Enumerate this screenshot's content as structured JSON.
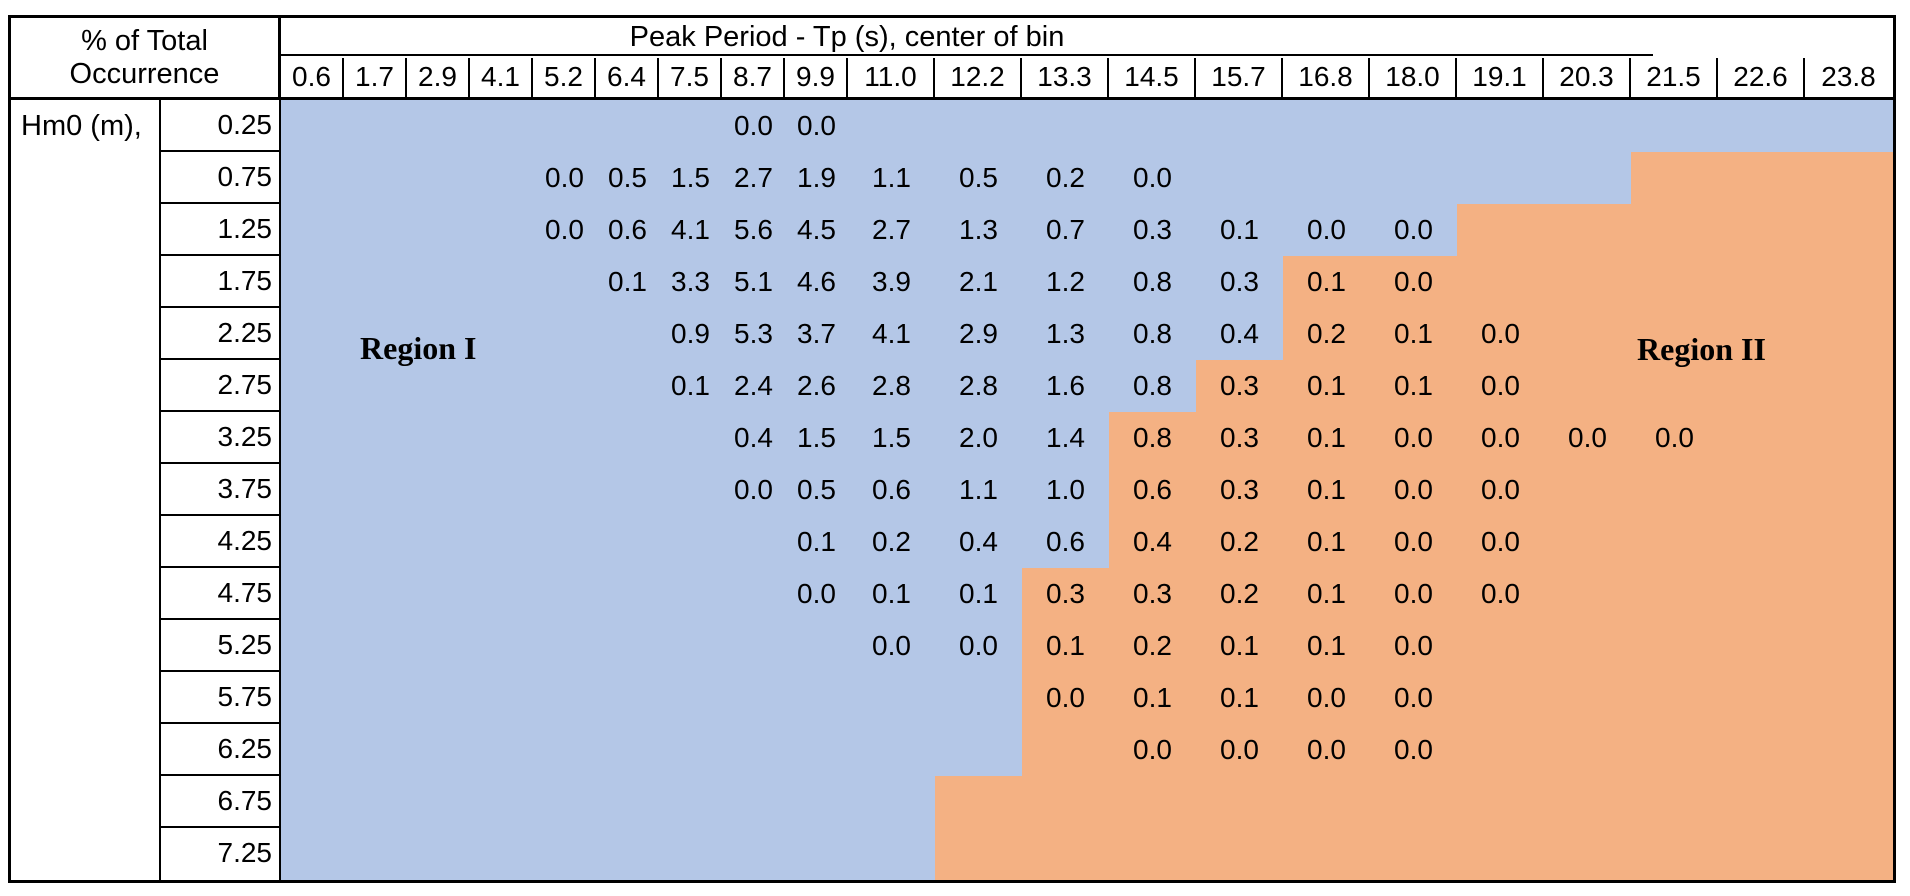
{
  "header": {
    "corner_line1": "% of Total",
    "corner_line2": "Occurrence",
    "col_axis_title": "Peak Period - Tp (s), center of bin",
    "row_axis_label": "Hm0 (m),"
  },
  "regions": {
    "region1": {
      "label": "Region I",
      "color": "#B4C7E7"
    },
    "region2": {
      "label": "Region II",
      "color": "#F4B183"
    }
  },
  "chart_data": {
    "type": "heatmap",
    "title": "% of Total Occurrence",
    "xlabel": "Peak Period - Tp (s), center of bin",
    "ylabel": "Hm0 (m)",
    "legend": "values are percent of total occurrence; Region I = blue shading, Region II = orange shading",
    "columns": [
      "0.6",
      "1.7",
      "2.9",
      "4.1",
      "5.2",
      "6.4",
      "7.5",
      "8.7",
      "9.9",
      "11.0",
      "12.2",
      "13.3",
      "14.5",
      "15.7",
      "16.8",
      "18.0",
      "19.1",
      "20.3",
      "21.5",
      "22.6",
      "23.8"
    ],
    "rows": [
      {
        "hm0": "0.25",
        "values": {
          "8.7": "0.0",
          "9.9": "0.0"
        },
        "region2_from": null
      },
      {
        "hm0": "0.75",
        "values": {
          "5.2": "0.0",
          "6.4": "0.5",
          "7.5": "1.5",
          "8.7": "2.7",
          "9.9": "1.9",
          "11.0": "1.1",
          "12.2": "0.5",
          "13.3": "0.2",
          "14.5": "0.0"
        },
        "region2_from": "21.5"
      },
      {
        "hm0": "1.25",
        "values": {
          "5.2": "0.0",
          "6.4": "0.6",
          "7.5": "4.1",
          "8.7": "5.6",
          "9.9": "4.5",
          "11.0": "2.7",
          "12.2": "1.3",
          "13.3": "0.7",
          "14.5": "0.3",
          "15.7": "0.1",
          "16.8": "0.0",
          "18.0": "0.0"
        },
        "region2_from": "19.1"
      },
      {
        "hm0": "1.75",
        "values": {
          "6.4": "0.1",
          "7.5": "3.3",
          "8.7": "5.1",
          "9.9": "4.6",
          "11.0": "3.9",
          "12.2": "2.1",
          "13.3": "1.2",
          "14.5": "0.8",
          "15.7": "0.3",
          "16.8": "0.1",
          "18.0": "0.0"
        },
        "region2_from": "16.8"
      },
      {
        "hm0": "2.25",
        "values": {
          "7.5": "0.9",
          "8.7": "5.3",
          "9.9": "3.7",
          "11.0": "4.1",
          "12.2": "2.9",
          "13.3": "1.3",
          "14.5": "0.8",
          "15.7": "0.4",
          "16.8": "0.2",
          "18.0": "0.1",
          "19.1": "0.0"
        },
        "region2_from": "16.8"
      },
      {
        "hm0": "2.75",
        "values": {
          "7.5": "0.1",
          "8.7": "2.4",
          "9.9": "2.6",
          "11.0": "2.8",
          "12.2": "2.8",
          "13.3": "1.6",
          "14.5": "0.8",
          "15.7": "0.3",
          "16.8": "0.1",
          "18.0": "0.1",
          "19.1": "0.0"
        },
        "region2_from": "15.7"
      },
      {
        "hm0": "3.25",
        "values": {
          "8.7": "0.4",
          "9.9": "1.5",
          "11.0": "1.5",
          "12.2": "2.0",
          "13.3": "1.4",
          "14.5": "0.8",
          "15.7": "0.3",
          "16.8": "0.1",
          "18.0": "0.0",
          "19.1": "0.0",
          "20.3": "0.0",
          "21.5": "0.0"
        },
        "region2_from": "14.5"
      },
      {
        "hm0": "3.75",
        "values": {
          "8.7": "0.0",
          "9.9": "0.5",
          "11.0": "0.6",
          "12.2": "1.1",
          "13.3": "1.0",
          "14.5": "0.6",
          "15.7": "0.3",
          "16.8": "0.1",
          "18.0": "0.0",
          "19.1": "0.0"
        },
        "region2_from": "14.5"
      },
      {
        "hm0": "4.25",
        "values": {
          "9.9": "0.1",
          "11.0": "0.2",
          "12.2": "0.4",
          "13.3": "0.6",
          "14.5": "0.4",
          "15.7": "0.2",
          "16.8": "0.1",
          "18.0": "0.0",
          "19.1": "0.0"
        },
        "region2_from": "14.5"
      },
      {
        "hm0": "4.75",
        "values": {
          "9.9": "0.0",
          "11.0": "0.1",
          "12.2": "0.1",
          "13.3": "0.3",
          "14.5": "0.3",
          "15.7": "0.2",
          "16.8": "0.1",
          "18.0": "0.0",
          "19.1": "0.0"
        },
        "region2_from": "13.3"
      },
      {
        "hm0": "5.25",
        "values": {
          "11.0": "0.0",
          "12.2": "0.0",
          "13.3": "0.1",
          "14.5": "0.2",
          "15.7": "0.1",
          "16.8": "0.1",
          "18.0": "0.0"
        },
        "region2_from": "13.3"
      },
      {
        "hm0": "5.75",
        "values": {
          "13.3": "0.0",
          "14.5": "0.1",
          "15.7": "0.1",
          "16.8": "0.0",
          "18.0": "0.0"
        },
        "region2_from": "13.3"
      },
      {
        "hm0": "6.25",
        "values": {
          "14.5": "0.0",
          "15.7": "0.0",
          "16.8": "0.0",
          "18.0": "0.0"
        },
        "region2_from": "13.3"
      },
      {
        "hm0": "6.75",
        "values": {},
        "region2_from": "12.2"
      },
      {
        "hm0": "7.25",
        "values": {},
        "region2_from": "12.2"
      }
    ]
  }
}
